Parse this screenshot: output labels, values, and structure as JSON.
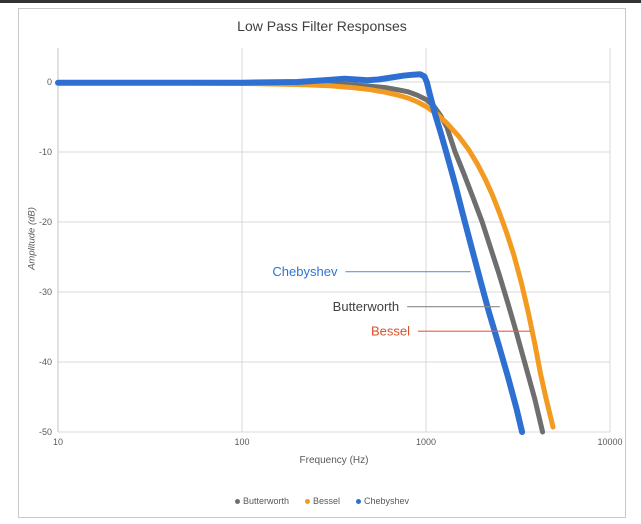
{
  "page": {
    "title": "Low Pass Filter Responses"
  },
  "chart_data": {
    "type": "line",
    "title": "Low Pass Filter Responses",
    "xlabel": "Frequency (Hz)",
    "ylabel": "Amplitude (dB)",
    "x_scale": "log",
    "xlim": [
      10,
      10000
    ],
    "ylim": [
      -50,
      4.8
    ],
    "x_ticks": [
      "10",
      "100",
      "1000",
      "10000"
    ],
    "x_tick_values": [
      10,
      100,
      1000,
      10000
    ],
    "y_ticks": [
      "0",
      "-10",
      "-20",
      "-30",
      "-40",
      "-50"
    ],
    "y_tick_values": [
      0,
      -10,
      -20,
      -30,
      -40,
      -50
    ],
    "grid": true,
    "gridline_color": "#d9d9d9",
    "axis_text_color": "#595959",
    "series": [
      {
        "name": "Butterworth",
        "color": "#6e6e6e",
        "points": [
          [
            10,
            -0.1
          ],
          [
            50,
            -0.1
          ],
          [
            100,
            -0.1
          ],
          [
            200,
            -0.15
          ],
          [
            300,
            -0.25
          ],
          [
            400,
            -0.4
          ],
          [
            500,
            -0.6
          ],
          [
            600,
            -0.8
          ],
          [
            700,
            -1.1
          ],
          [
            800,
            -1.4
          ],
          [
            900,
            -1.9
          ],
          [
            1000,
            -2.5
          ],
          [
            1100,
            -3.4
          ],
          [
            1200,
            -4.8
          ],
          [
            1300,
            -6.5
          ],
          [
            1440,
            -10
          ],
          [
            1600,
            -13
          ],
          [
            1800,
            -16.5
          ],
          [
            2020,
            -20
          ],
          [
            2200,
            -23
          ],
          [
            2500,
            -27.5
          ],
          [
            2800,
            -31.8
          ],
          [
            3100,
            -35.8
          ],
          [
            3500,
            -40.8
          ],
          [
            3900,
            -45.3
          ],
          [
            4300,
            -50
          ]
        ]
      },
      {
        "name": "Bessel",
        "color": "#f29b20",
        "points": [
          [
            10,
            -0.15
          ],
          [
            50,
            -0.15
          ],
          [
            100,
            -0.2
          ],
          [
            200,
            -0.35
          ],
          [
            300,
            -0.55
          ],
          [
            400,
            -0.8
          ],
          [
            500,
            -1.1
          ],
          [
            600,
            -1.45
          ],
          [
            700,
            -1.85
          ],
          [
            800,
            -2.3
          ],
          [
            900,
            -2.85
          ],
          [
            1000,
            -3.5
          ],
          [
            1150,
            -4.6
          ],
          [
            1300,
            -5.9
          ],
          [
            1500,
            -7.7
          ],
          [
            1700,
            -9.6
          ],
          [
            1900,
            -11.7
          ],
          [
            2100,
            -13.9
          ],
          [
            2300,
            -16.2
          ],
          [
            2500,
            -18.6
          ],
          [
            2750,
            -21.6
          ],
          [
            3000,
            -24.7
          ],
          [
            3300,
            -28.7
          ],
          [
            3600,
            -33
          ],
          [
            3900,
            -37.4
          ],
          [
            4200,
            -41.8
          ],
          [
            4500,
            -45.3
          ],
          [
            4900,
            -49.3
          ]
        ]
      },
      {
        "name": "Chebyshev",
        "color": "#2e6fd2",
        "points": [
          [
            10,
            -0.1
          ],
          [
            100,
            -0.1
          ],
          [
            200,
            0
          ],
          [
            300,
            0.3
          ],
          [
            360,
            0.45
          ],
          [
            420,
            0.35
          ],
          [
            480,
            0.25
          ],
          [
            550,
            0.35
          ],
          [
            650,
            0.65
          ],
          [
            750,
            0.9
          ],
          [
            850,
            1.05
          ],
          [
            930,
            1.1
          ],
          [
            980,
            0.8
          ],
          [
            1010,
            0
          ],
          [
            1050,
            -1.8
          ],
          [
            1120,
            -4.6
          ],
          [
            1200,
            -7.2
          ],
          [
            1300,
            -10.4
          ],
          [
            1450,
            -14.9
          ],
          [
            1600,
            -19.3
          ],
          [
            1800,
            -24.4
          ],
          [
            2000,
            -28.9
          ],
          [
            2200,
            -32.9
          ],
          [
            2500,
            -37.8
          ],
          [
            2800,
            -42.3
          ],
          [
            3100,
            -46.6
          ],
          [
            3330,
            -50
          ]
        ]
      }
    ],
    "annotations": [
      {
        "label": "Chebyshev",
        "db": -27.1,
        "f_line_start": 365,
        "f_line_end": 1750,
        "text_color": "#2e74d4",
        "line_color": "#5b9bd5"
      },
      {
        "label": "Butterworth",
        "db": -32.1,
        "f_line_start": 790,
        "f_line_end": 2520,
        "text_color": "#404040",
        "line_color": "#8a8a8a"
      },
      {
        "label": "Bessel",
        "db": -35.6,
        "f_line_start": 905,
        "f_line_end": 3700,
        "text_color": "#d9502a",
        "line_color": "#e0604a"
      }
    ],
    "legend": {
      "position": "bottom",
      "entries": [
        "Butterworth",
        "Bessel",
        "Chebyshev"
      ]
    }
  }
}
